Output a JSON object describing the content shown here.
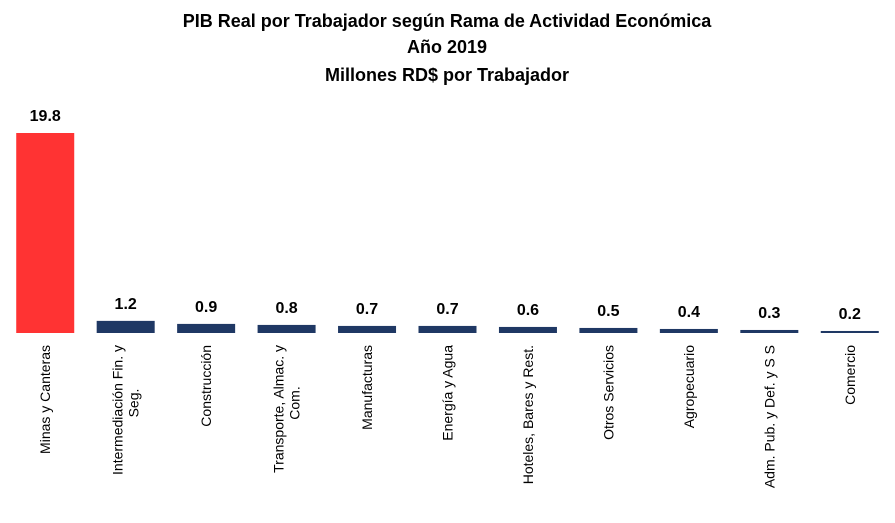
{
  "chart_data": {
    "type": "bar",
    "title": "PIB Real por Trabajador según Rama de Actividad Económica",
    "subtitle": "Año 2019",
    "y_label": "Millones RD$ por Trabajador",
    "categories": [
      "Minas y Canteras",
      "Intermediación Fin. y Seg.",
      "Construcción",
      "Transporte, Almac. y Com.",
      "Manufacturas",
      "Energía y Agua",
      "Hoteles, Bares y Rest.",
      "Otros Servicios",
      "Agropecuario",
      "Adm. Pub. y Def. y S S",
      "Comercio"
    ],
    "values": [
      19.8,
      1.2,
      0.9,
      0.8,
      0.7,
      0.7,
      0.6,
      0.5,
      0.4,
      0.3,
      0.2
    ],
    "colors": [
      "#ff3333",
      "#1f3864",
      "#1f3864",
      "#1f3864",
      "#1f3864",
      "#1f3864",
      "#1f3864",
      "#1f3864",
      "#1f3864",
      "#1f3864",
      "#1f3864"
    ]
  }
}
